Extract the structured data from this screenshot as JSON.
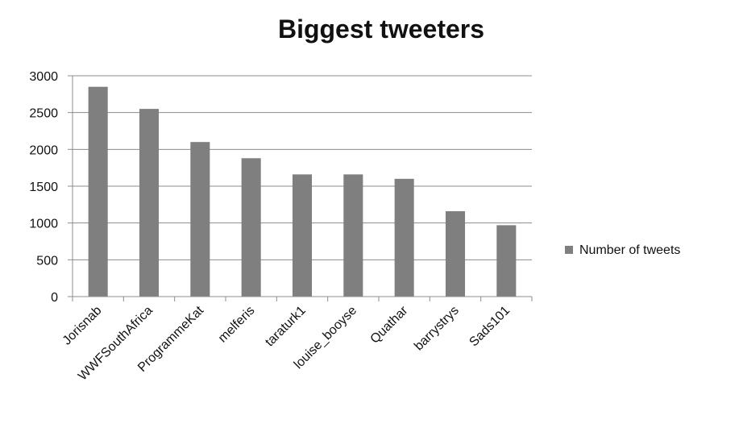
{
  "chart_data": {
    "type": "bar",
    "title": "Biggest tweeters",
    "xlabel": "",
    "ylabel": "",
    "categories": [
      "Jorisnab",
      "WWFSouthAfrica",
      "ProgrammeKat",
      "melferis",
      "taraturk1",
      "louise_booyse",
      "Quathar",
      "barrystrys",
      "Sads101"
    ],
    "series": [
      {
        "name": "Number of tweets",
        "values": [
          2850,
          2550,
          2100,
          1880,
          1660,
          1660,
          1600,
          1160,
          970
        ],
        "color": "#7f7f7f"
      }
    ],
    "ylim": [
      0,
      3000
    ],
    "yticks": [
      0,
      500,
      1000,
      1500,
      2000,
      2500,
      3000
    ],
    "grid": true,
    "legend": "right"
  }
}
